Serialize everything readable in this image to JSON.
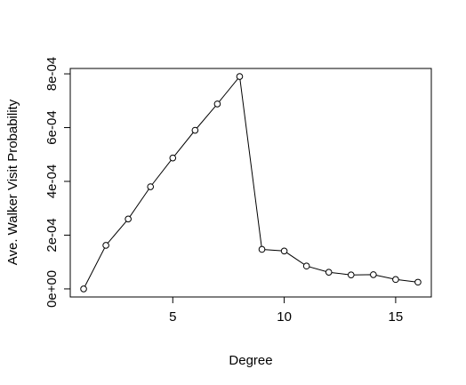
{
  "chart_data": {
    "type": "line",
    "title": "",
    "xlabel": "Degree",
    "ylabel": "Ave. Walker Visit Probability",
    "x": [
      1,
      2,
      3,
      4,
      5,
      6,
      7,
      8,
      9,
      10,
      11,
      12,
      13,
      14,
      15,
      16
    ],
    "series": [
      {
        "values": [
          0.0,
          0.000162,
          0.00026,
          0.00038,
          0.000487,
          0.00059,
          0.000688,
          0.00079,
          0.000147,
          0.000141,
          8.5e-05,
          6.2e-05,
          5.2e-05,
          5.3e-05,
          3.5e-05,
          2.5e-05
        ]
      }
    ],
    "xlim": [
      0.4,
      16.6
    ],
    "ylim": [
      -3e-05,
      0.00082
    ],
    "x_ticks": [
      5,
      10,
      15
    ],
    "x_tick_labels": [
      "5",
      "10",
      "15"
    ],
    "y_ticks": [
      0,
      0.0002,
      0.0004,
      0.0006,
      0.0008
    ],
    "y_tick_labels": [
      "0e+00",
      "2e-04",
      "4e-04",
      "6e-04",
      "8e-04"
    ],
    "marker": "open-circle",
    "grid": false,
    "legend": "none",
    "line_color": "#000000"
  }
}
